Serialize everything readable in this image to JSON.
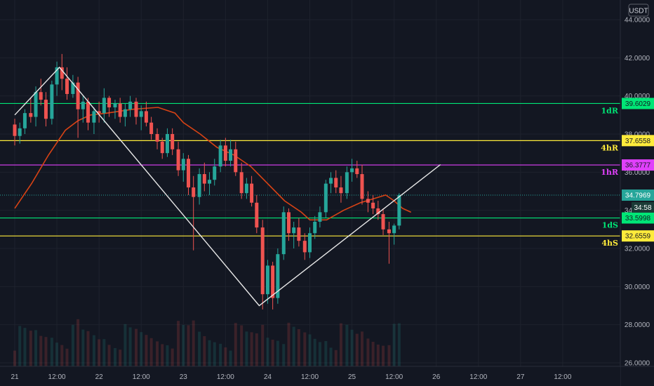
{
  "chart_data": {
    "type": "candlestick",
    "symbol_quote": "USDT",
    "x_ticks": [
      "21",
      "12:00",
      "22",
      "12:00",
      "23",
      "12:00",
      "24",
      "12:00",
      "25",
      "12:00",
      "26",
      "12:00",
      "27",
      "12:00"
    ],
    "y_ticks": [
      "26.0000",
      "28.0000",
      "30.0000",
      "32.0000",
      "34.0000",
      "36.0000",
      "38.0000",
      "40.0000",
      "42.0000",
      "44.0000"
    ],
    "y_range": [
      26,
      44
    ],
    "x_range_days": [
      21,
      28
    ],
    "grid": true,
    "colors": {
      "background": "#131722",
      "up": "#26a69a",
      "down": "#ef5350",
      "ma": "#d84315",
      "trendline": "#e8e8e8",
      "price_line": "#26a69a",
      "resistance_1d": "#00e676",
      "level_4h": "#ffeb3b",
      "level_1h": "#e040fb"
    },
    "levels": [
      {
        "tag": "1dR",
        "value": 39.6029,
        "label": "39.6029",
        "color": "#00e676"
      },
      {
        "tag": "4hR",
        "value": 37.6558,
        "label": "37.6558",
        "color": "#ffeb3b"
      },
      {
        "tag": "1hR",
        "value": 36.3777,
        "label": "36.3777",
        "color": "#e040fb"
      },
      {
        "tag": "1dS",
        "value": 33.5998,
        "label": "33.5998",
        "color": "#00e676"
      },
      {
        "tag": "4hS",
        "value": 32.6559,
        "label": "32.6559",
        "color": "#ffeb3b"
      }
    ],
    "current_price": {
      "value": 34.7969,
      "label": "34.7969",
      "countdown": "34:58"
    },
    "moving_average": [
      [
        21.0,
        34.1
      ],
      [
        21.2,
        35.4
      ],
      [
        21.4,
        36.9
      ],
      [
        21.6,
        38.2
      ],
      [
        21.75,
        38.7
      ],
      [
        21.9,
        39.0
      ],
      [
        22.1,
        39.1
      ],
      [
        22.4,
        39.3
      ],
      [
        22.7,
        39.4
      ],
      [
        22.9,
        39.1
      ],
      [
        23.0,
        38.6
      ],
      [
        23.2,
        38.0
      ],
      [
        23.4,
        37.3
      ],
      [
        23.6,
        36.9
      ],
      [
        23.8,
        36.3
      ],
      [
        24.0,
        35.4
      ],
      [
        24.2,
        34.5
      ],
      [
        24.4,
        33.9
      ],
      [
        24.5,
        33.5
      ],
      [
        24.7,
        33.5
      ],
      [
        24.9,
        34.0
      ],
      [
        25.1,
        34.4
      ],
      [
        25.25,
        34.6
      ],
      [
        25.4,
        34.8
      ],
      [
        25.5,
        34.5
      ],
      [
        25.6,
        34.1
      ],
      [
        25.7,
        33.9
      ]
    ],
    "candles": [
      [
        21.0,
        38.5,
        38.8,
        37.4,
        37.9
      ],
      [
        21.06,
        37.9,
        38.6,
        37.5,
        38.3
      ],
      [
        21.12,
        38.3,
        39.3,
        38.0,
        39.1
      ],
      [
        21.19,
        39.1,
        39.9,
        38.6,
        38.9
      ],
      [
        21.25,
        38.9,
        40.5,
        38.4,
        40.2
      ],
      [
        21.31,
        40.2,
        40.9,
        39.5,
        39.8
      ],
      [
        21.37,
        39.8,
        40.2,
        38.4,
        38.8
      ],
      [
        21.44,
        38.8,
        40.8,
        38.5,
        40.6
      ],
      [
        21.5,
        40.6,
        41.8,
        40.0,
        41.5
      ],
      [
        21.56,
        41.5,
        42.2,
        40.3,
        40.9
      ],
      [
        21.62,
        40.9,
        41.5,
        39.8,
        40.1
      ],
      [
        21.69,
        40.1,
        41.1,
        39.9,
        40.7
      ],
      [
        21.75,
        40.7,
        41.0,
        37.8,
        39.3
      ],
      [
        21.81,
        39.3,
        40.0,
        38.6,
        39.7
      ],
      [
        21.87,
        39.7,
        39.9,
        38.2,
        38.6
      ],
      [
        21.94,
        38.6,
        39.4,
        38.0,
        39.2
      ],
      [
        22.0,
        39.2,
        39.7,
        38.6,
        39.1
      ],
      [
        22.06,
        39.1,
        40.4,
        38.6,
        39.9
      ],
      [
        22.12,
        39.9,
        40.0,
        38.9,
        39.4
      ],
      [
        22.19,
        39.4,
        39.8,
        38.8,
        39.6
      ],
      [
        22.25,
        39.6,
        39.9,
        38.6,
        38.9
      ],
      [
        22.31,
        38.9,
        39.6,
        38.4,
        39.3
      ],
      [
        22.37,
        39.3,
        40.0,
        38.9,
        39.7
      ],
      [
        22.44,
        39.7,
        39.9,
        38.5,
        38.9
      ],
      [
        22.5,
        38.9,
        39.5,
        38.2,
        39.2
      ],
      [
        22.56,
        39.2,
        39.7,
        38.4,
        38.6
      ],
      [
        22.62,
        38.6,
        38.9,
        37.7,
        38.0
      ],
      [
        22.69,
        38.0,
        38.3,
        37.2,
        37.6
      ],
      [
        22.75,
        37.6,
        37.8,
        36.7,
        37.0
      ],
      [
        22.81,
        37.0,
        38.3,
        36.8,
        38.0
      ],
      [
        22.87,
        38.0,
        38.3,
        36.9,
        37.2
      ],
      [
        22.94,
        37.2,
        37.6,
        35.8,
        36.1
      ],
      [
        23.0,
        36.1,
        37.0,
        35.5,
        36.7
      ],
      [
        23.06,
        36.7,
        36.9,
        34.8,
        35.2
      ],
      [
        23.12,
        35.2,
        35.8,
        31.9,
        34.7
      ],
      [
        23.19,
        34.7,
        36.2,
        34.3,
        35.9
      ],
      [
        23.25,
        35.9,
        36.5,
        35.0,
        35.4
      ],
      [
        23.31,
        35.4,
        36.0,
        34.8,
        35.6
      ],
      [
        23.37,
        35.6,
        36.7,
        35.3,
        36.3
      ],
      [
        23.44,
        36.3,
        37.7,
        36.0,
        37.4
      ],
      [
        23.5,
        37.4,
        37.8,
        36.3,
        36.6
      ],
      [
        23.56,
        36.6,
        37.7,
        36.3,
        37.2
      ],
      [
        23.62,
        37.2,
        37.6,
        35.8,
        36.0
      ],
      [
        23.69,
        36.0,
        36.5,
        34.6,
        34.9
      ],
      [
        23.75,
        34.9,
        35.7,
        34.6,
        35.4
      ],
      [
        23.81,
        35.4,
        35.8,
        34.2,
        34.4
      ],
      [
        23.87,
        34.4,
        34.8,
        32.8,
        33.1
      ],
      [
        23.94,
        33.1,
        33.5,
        28.8,
        29.6
      ],
      [
        24.0,
        29.6,
        31.4,
        29.1,
        31.1
      ],
      [
        24.06,
        31.1,
        31.3,
        28.8,
        29.4
      ],
      [
        24.12,
        29.4,
        32.0,
        29.1,
        31.7
      ],
      [
        24.19,
        31.7,
        34.2,
        31.4,
        33.9
      ],
      [
        24.25,
        33.9,
        34.1,
        32.4,
        32.8
      ],
      [
        24.31,
        32.8,
        33.4,
        32.0,
        33.1
      ],
      [
        24.37,
        33.1,
        33.6,
        32.1,
        32.4
      ],
      [
        24.44,
        32.4,
        32.8,
        31.4,
        31.8
      ],
      [
        24.5,
        31.8,
        33.1,
        31.5,
        32.8
      ],
      [
        24.56,
        32.8,
        33.7,
        32.5,
        33.4
      ],
      [
        24.62,
        33.4,
        34.2,
        33.1,
        33.9
      ],
      [
        24.69,
        33.9,
        35.6,
        33.6,
        35.4
      ],
      [
        24.75,
        35.4,
        36.0,
        34.9,
        35.7
      ],
      [
        24.81,
        35.7,
        36.1,
        34.9,
        35.2
      ],
      [
        24.87,
        35.2,
        35.8,
        34.4,
        34.9
      ],
      [
        24.94,
        34.9,
        36.3,
        34.6,
        36.0
      ],
      [
        25.0,
        36.0,
        36.7,
        35.5,
        36.2
      ],
      [
        25.06,
        36.2,
        36.6,
        35.7,
        35.9
      ],
      [
        25.12,
        35.9,
        36.4,
        34.3,
        34.6
      ],
      [
        25.19,
        34.6,
        35.0,
        33.9,
        34.4
      ],
      [
        25.25,
        34.4,
        34.8,
        33.8,
        34.1
      ],
      [
        25.31,
        34.1,
        34.5,
        33.5,
        33.8
      ],
      [
        25.37,
        33.8,
        34.1,
        32.7,
        33.0
      ],
      [
        25.44,
        33.0,
        33.4,
        31.2,
        32.8
      ],
      [
        25.5,
        32.8,
        33.3,
        32.2,
        33.2
      ],
      [
        25.56,
        33.2,
        34.9,
        33.0,
        34.8
      ]
    ],
    "trendline_segments": [
      [
        [
          21.0,
          39.0
        ],
        [
          21.53,
          41.5
        ],
        [
          23.9,
          29.0
        ],
        [
          26.05,
          36.4
        ]
      ]
    ]
  }
}
